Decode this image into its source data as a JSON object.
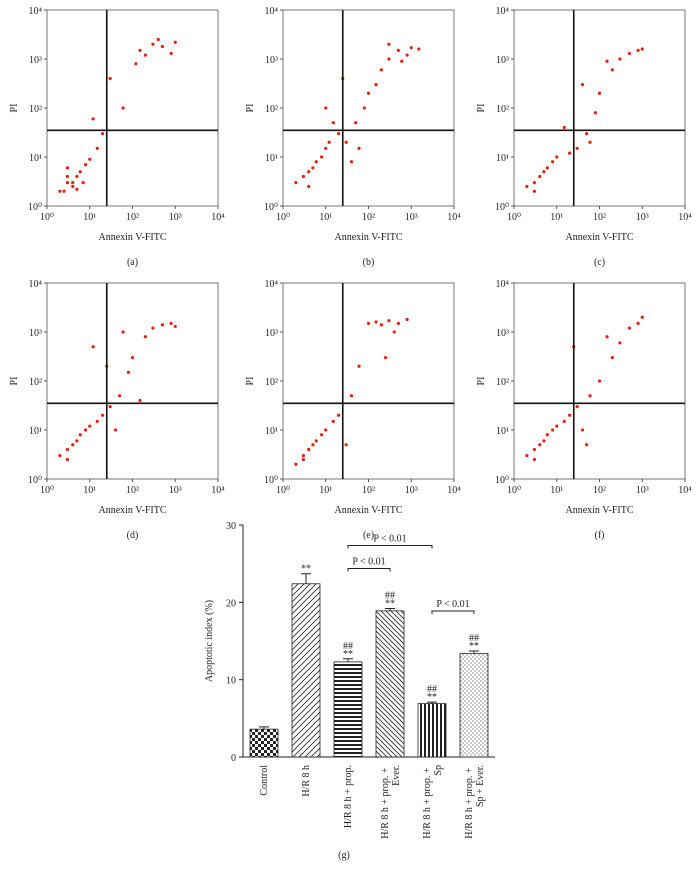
{
  "chart_data": [
    {
      "type": "scatter",
      "caption": "(a)",
      "xlabel": "Annexin V-FITC",
      "ylabel": "PI",
      "log_x": true,
      "log_y": true,
      "color": "#e8210f",
      "xlim": [
        1,
        10000
      ],
      "ylim": [
        1,
        10000
      ],
      "xticks": [
        {
          "value": 1,
          "label": "10⁰"
        },
        {
          "value": 10,
          "label": "10¹"
        },
        {
          "value": 100,
          "label": "10²"
        },
        {
          "value": 1000,
          "label": "10³"
        },
        {
          "value": 10000,
          "label": "10⁴"
        }
      ],
      "yticks": [
        {
          "value": 1,
          "label": "10⁰"
        },
        {
          "value": 10,
          "label": "10¹"
        },
        {
          "value": 100,
          "label": "10²"
        },
        {
          "value": 1000,
          "label": "10³"
        },
        {
          "value": 10000,
          "label": "10⁴"
        }
      ],
      "x_gate": 25,
      "y_gate": 35,
      "x": [
        2,
        3,
        4,
        5,
        6,
        3,
        4,
        8,
        10,
        2.5,
        5,
        7,
        3,
        15,
        20,
        12,
        150,
        200,
        300,
        500,
        800,
        120,
        400,
        1000,
        60,
        30
      ],
      "y": [
        2,
        3,
        2.5,
        4,
        5,
        6,
        3,
        7,
        9,
        2,
        2.2,
        3,
        4,
        15,
        30,
        60,
        1500,
        1200,
        2000,
        1800,
        1300,
        800,
        2500,
        2200,
        100,
        400
      ]
    },
    {
      "type": "scatter",
      "caption": "(b)",
      "xlabel": "Annexin V-FITC",
      "ylabel": "PI",
      "log_x": true,
      "log_y": true,
      "color": "#e8210f",
      "xlim": [
        1,
        10000
      ],
      "ylim": [
        1,
        10000
      ],
      "xticks": [
        {
          "value": 1,
          "label": "10⁰"
        },
        {
          "value": 10,
          "label": "10¹"
        },
        {
          "value": 100,
          "label": "10²"
        },
        {
          "value": 1000,
          "label": "10³"
        },
        {
          "value": 10000,
          "label": "10⁴"
        }
      ],
      "yticks": [
        {
          "value": 1,
          "label": "10⁰"
        },
        {
          "value": 10,
          "label": "10¹"
        },
        {
          "value": 100,
          "label": "10²"
        },
        {
          "value": 1000,
          "label": "10³"
        },
        {
          "value": 10000,
          "label": "10⁴"
        }
      ],
      "x_gate": 25,
      "y_gate": 35,
      "x": [
        2,
        3,
        4,
        5,
        6,
        8,
        10,
        12,
        4,
        20,
        30,
        50,
        80,
        100,
        150,
        200,
        300,
        500,
        800,
        1000,
        40,
        60,
        25,
        15,
        300,
        600,
        1500,
        10
      ],
      "y": [
        3,
        4,
        5,
        6,
        8,
        10,
        15,
        20,
        2.5,
        30,
        20,
        50,
        100,
        200,
        300,
        600,
        1000,
        1500,
        1200,
        1700,
        8,
        15,
        400,
        50,
        2000,
        900,
        1600,
        100
      ]
    },
    {
      "type": "scatter",
      "caption": "(c)",
      "xlabel": "Annexin V-FITC",
      "ylabel": "PI",
      "log_x": true,
      "log_y": true,
      "color": "#e8210f",
      "xlim": [
        1,
        10000
      ],
      "ylim": [
        1,
        10000
      ],
      "xticks": [
        {
          "value": 1,
          "label": "10⁰"
        },
        {
          "value": 10,
          "label": "10¹"
        },
        {
          "value": 100,
          "label": "10²"
        },
        {
          "value": 1000,
          "label": "10³"
        },
        {
          "value": 10000,
          "label": "10⁴"
        }
      ],
      "yticks": [
        {
          "value": 1,
          "label": "10⁰"
        },
        {
          "value": 10,
          "label": "10¹"
        },
        {
          "value": 100,
          "label": "10²"
        },
        {
          "value": 1000,
          "label": "10³"
        },
        {
          "value": 10000,
          "label": "10⁴"
        }
      ],
      "x_gate": 25,
      "y_gate": 35,
      "x": [
        2,
        3,
        4,
        5,
        6,
        8,
        10,
        3,
        20,
        30,
        50,
        80,
        100,
        200,
        300,
        500,
        800,
        1000,
        15,
        40,
        60,
        150
      ],
      "y": [
        2.5,
        3,
        4,
        5,
        6,
        8,
        10,
        2,
        12,
        15,
        30,
        80,
        200,
        600,
        1000,
        1300,
        1500,
        1600,
        40,
        300,
        20,
        900
      ]
    },
    {
      "type": "scatter",
      "caption": "(d)",
      "xlabel": "Annexin V-FITC",
      "ylabel": "PI",
      "log_x": true,
      "log_y": true,
      "color": "#e8210f",
      "xlim": [
        1,
        10000
      ],
      "ylim": [
        1,
        10000
      ],
      "xticks": [
        {
          "value": 1,
          "label": "10⁰"
        },
        {
          "value": 10,
          "label": "10¹"
        },
        {
          "value": 100,
          "label": "10²"
        },
        {
          "value": 1000,
          "label": "10³"
        },
        {
          "value": 10000,
          "label": "10⁴"
        }
      ],
      "yticks": [
        {
          "value": 1,
          "label": "10⁰"
        },
        {
          "value": 10,
          "label": "10¹"
        },
        {
          "value": 100,
          "label": "10²"
        },
        {
          "value": 1000,
          "label": "10³"
        },
        {
          "value": 10000,
          "label": "10⁴"
        }
      ],
      "x_gate": 25,
      "y_gate": 35,
      "x": [
        2,
        3,
        4,
        5,
        6,
        8,
        10,
        15,
        20,
        30,
        50,
        80,
        100,
        200,
        300,
        500,
        800,
        1000,
        3,
        25,
        40,
        150,
        60,
        12
      ],
      "y": [
        3,
        4,
        5,
        6,
        8,
        10,
        12,
        15,
        20,
        30,
        50,
        150,
        300,
        800,
        1200,
        1400,
        1500,
        1300,
        2.5,
        200,
        10,
        40,
        1000,
        500
      ]
    },
    {
      "type": "scatter",
      "caption": "(e)",
      "xlabel": "Annexin V-FITC",
      "ylabel": "PI",
      "log_x": true,
      "log_y": true,
      "color": "#e8210f",
      "xlim": [
        1,
        10000
      ],
      "ylim": [
        1,
        10000
      ],
      "xticks": [
        {
          "value": 1,
          "label": "10⁰"
        },
        {
          "value": 10,
          "label": "10¹"
        },
        {
          "value": 100,
          "label": "10²"
        },
        {
          "value": 1000,
          "label": "10³"
        },
        {
          "value": 10000,
          "label": "10⁴"
        }
      ],
      "yticks": [
        {
          "value": 1,
          "label": "10⁰"
        },
        {
          "value": 10,
          "label": "10¹"
        },
        {
          "value": 100,
          "label": "10²"
        },
        {
          "value": 1000,
          "label": "10³"
        },
        {
          "value": 10000,
          "label": "10⁴"
        }
      ],
      "x_gate": 25,
      "y_gate": 35,
      "x": [
        2,
        3,
        4,
        5,
        6,
        8,
        3,
        10,
        15,
        20,
        30,
        100,
        150,
        200,
        300,
        500,
        800,
        250,
        400,
        60,
        40
      ],
      "y": [
        2,
        3,
        4,
        5,
        6,
        8,
        2.5,
        10,
        15,
        20,
        5,
        1500,
        1600,
        1400,
        1700,
        1500,
        1800,
        300,
        1000,
        200,
        50
      ]
    },
    {
      "type": "scatter",
      "caption": "(f)",
      "xlabel": "Annexin V-FITC",
      "ylabel": "PI",
      "log_x": true,
      "log_y": true,
      "color": "#e8210f",
      "xlim": [
        1,
        10000
      ],
      "ylim": [
        1,
        10000
      ],
      "xticks": [
        {
          "value": 1,
          "label": "10⁰"
        },
        {
          "value": 10,
          "label": "10¹"
        },
        {
          "value": 100,
          "label": "10²"
        },
        {
          "value": 1000,
          "label": "10³"
        },
        {
          "value": 10000,
          "label": "10⁴"
        }
      ],
      "yticks": [
        {
          "value": 1,
          "label": "10⁰"
        },
        {
          "value": 10,
          "label": "10¹"
        },
        {
          "value": 100,
          "label": "10²"
        },
        {
          "value": 1000,
          "label": "10³"
        },
        {
          "value": 10000,
          "label": "10⁴"
        }
      ],
      "x_gate": 25,
      "y_gate": 35,
      "x": [
        2,
        3,
        4,
        5,
        6,
        8,
        10,
        3,
        15,
        20,
        30,
        40,
        60,
        100,
        200,
        300,
        500,
        800,
        1000,
        25,
        50,
        150
      ],
      "y": [
        3,
        4,
        5,
        6,
        8,
        10,
        12,
        2.5,
        15,
        20,
        30,
        10,
        50,
        100,
        300,
        600,
        1200,
        1500,
        2000,
        500,
        5,
        800
      ]
    },
    {
      "type": "bar",
      "caption": "(g)",
      "ylabel": "Apoptotic index (%)",
      "categories": [
        "Control",
        "H/R 8 h",
        "H/R 8 h + prop.",
        "H/R 8 h + prop. + Ever.",
        "H/R 8 h + prop. + Sp",
        "H/R 8 h + prop. + Sp + Ever."
      ],
      "values": [
        3.6,
        22.4,
        12.3,
        18.9,
        6.9,
        13.4
      ],
      "errors": [
        0.3,
        1.3,
        0.4,
        0.3,
        0.2,
        0.3
      ],
      "markers": [
        null,
        [
          "**"
        ],
        [
          "##",
          "**"
        ],
        [
          "##",
          "**"
        ],
        [
          "##",
          "**"
        ],
        [
          "##",
          "**"
        ]
      ],
      "comparisons": [
        {
          "between": [
            "H/R 8 h + prop.",
            "H/R 8 h + prop. + Sp"
          ],
          "text": "P < 0.01"
        },
        {
          "between": [
            "H/R 8 h + prop.",
            "H/R 8 h + prop. + Ever."
          ],
          "text": "P < 0.01"
        },
        {
          "between": [
            "H/R 8 h + prop. + Sp",
            "H/R 8 h + prop. + Sp + Ever."
          ],
          "text": "P < 0.01"
        }
      ],
      "ylim": [
        0,
        30
      ],
      "yticks": [
        0,
        10,
        20,
        30
      ]
    }
  ]
}
